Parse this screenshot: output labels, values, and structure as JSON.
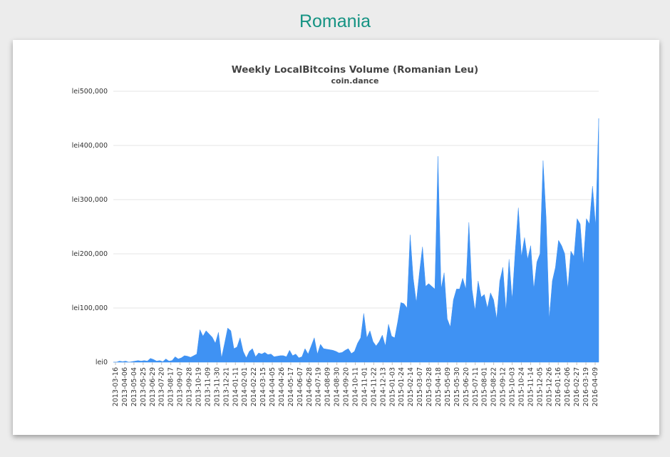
{
  "page": {
    "heading": "Romania"
  },
  "colors": {
    "heading": "#159383",
    "area": "#3f92f3",
    "grid": "#e6e6e6",
    "axis_text": "#333333"
  },
  "chart_data": {
    "type": "area",
    "title": "Weekly LocalBitcoins Volume (Romanian Leu)",
    "subtitle": "coin.dance",
    "ylim": [
      0,
      500000
    ],
    "y_ticks": [
      0,
      100000,
      200000,
      300000,
      400000,
      500000
    ],
    "y_tick_labels": [
      "lei0",
      "lei100,000",
      "lei200,000",
      "lei300,000",
      "lei400,000",
      "lei500,000"
    ],
    "grid": true,
    "legend": "none",
    "x_tick_labels": [
      "2013-03-16",
      "2013-04-06",
      "2013-05-04",
      "2013-05-25",
      "2013-06-29",
      "2013-07-20",
      "2013-08-17",
      "2013-09-07",
      "2013-09-28",
      "2013-10-19",
      "2013-11-09",
      "2013-11-30",
      "2013-12-21",
      "2014-01-11",
      "2014-02-01",
      "2014-02-22",
      "2014-03-15",
      "2014-04-05",
      "2014-04-26",
      "2014-05-17",
      "2014-06-07",
      "2014-06-28",
      "2014-07-19",
      "2014-08-09",
      "2014-08-30",
      "2014-09-20",
      "2014-10-11",
      "2014-11-01",
      "2014-11-22",
      "2014-12-13",
      "2015-01-03",
      "2015-01-24",
      "2015-02-14",
      "2015-03-07",
      "2015-03-28",
      "2015-04-18",
      "2015-05-09",
      "2015-05-30",
      "2015-06-20",
      "2015-07-11",
      "2015-08-01",
      "2015-08-22",
      "2015-09-12",
      "2015-10-03",
      "2015-10-24",
      "2015-11-14",
      "2015-12-05",
      "2015-12-26",
      "2016-01-16",
      "2016-02-06",
      "2016-02-27",
      "2016-03-19",
      "2016-04-09"
    ],
    "series": [
      {
        "values": [
          0,
          0,
          2000,
          1000,
          2000,
          0,
          1000,
          2000,
          3000,
          2000,
          3000,
          2000,
          7000,
          5000,
          2000,
          3000,
          1000,
          6000,
          2000,
          3000,
          10000,
          6000,
          8000,
          12000,
          11000,
          9000,
          12000,
          15000,
          60000,
          48000,
          58000,
          52000,
          46000,
          35000,
          55000,
          8000,
          35000,
          63000,
          58000,
          25000,
          28000,
          45000,
          20000,
          8000,
          20000,
          25000,
          10000,
          17000,
          15000,
          18000,
          14000,
          15000,
          10000,
          11000,
          12000,
          12000,
          10000,
          22000,
          12000,
          15000,
          8000,
          10000,
          25000,
          15000,
          30000,
          45000,
          15000,
          33000,
          25000,
          24000,
          23000,
          22000,
          20000,
          17000,
          18000,
          22000,
          25000,
          16000,
          20000,
          35000,
          45000,
          90000,
          45000,
          58000,
          38000,
          30000,
          38000,
          50000,
          30000,
          70000,
          48000,
          45000,
          75000,
          110000,
          108000,
          100000,
          235000,
          155000,
          110000,
          165000,
          213000,
          140000,
          145000,
          140000,
          135000,
          380000,
          135000,
          165000,
          80000,
          65000,
          115000,
          135000,
          135000,
          155000,
          135000,
          258000,
          135000,
          95000,
          150000,
          120000,
          125000,
          100000,
          128000,
          115000,
          80000,
          150000,
          175000,
          95000,
          190000,
          115000,
          205000,
          285000,
          195000,
          230000,
          190000,
          215000,
          135000,
          185000,
          200000,
          372000,
          265000,
          80000,
          150000,
          175000,
          225000,
          215000,
          200000,
          135000,
          205000,
          195000,
          265000,
          255000,
          180000,
          265000,
          255000,
          325000,
          250000,
          450000
        ]
      }
    ]
  }
}
